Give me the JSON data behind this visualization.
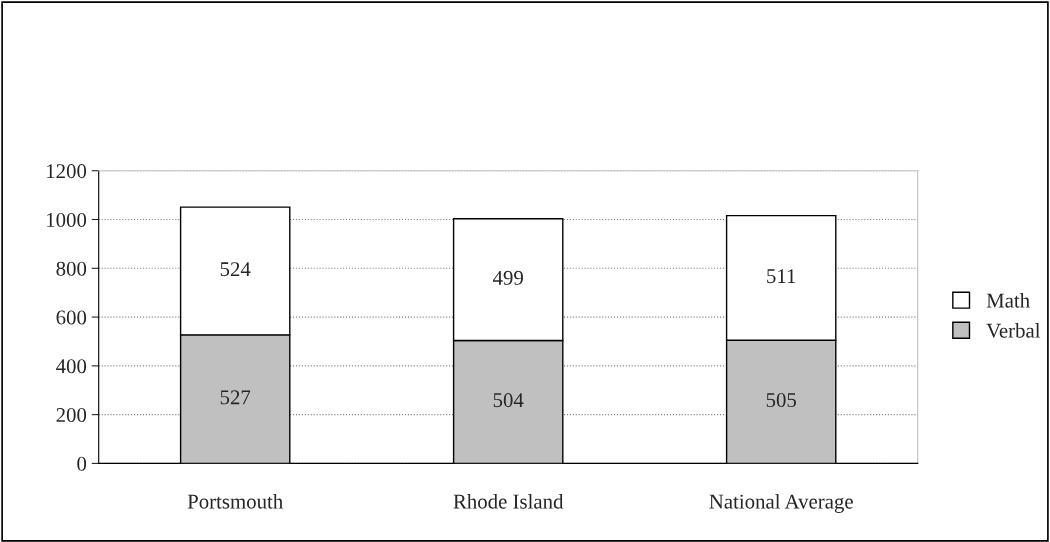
{
  "chart_data": {
    "type": "bar",
    "stacked": true,
    "categories": [
      "Portsmouth",
      "Rhode Island",
      "National Average"
    ],
    "series": [
      {
        "name": "Verbal",
        "color": "#c0c0c0",
        "values": [
          527,
          504,
          505
        ]
      },
      {
        "name": "Math",
        "color": "#ffffff",
        "values": [
          524,
          499,
          511
        ]
      }
    ],
    "ylim": [
      0,
      1200
    ],
    "yticks": [
      0,
      200,
      400,
      600,
      800,
      1000,
      1200
    ],
    "grid": "y",
    "legend": "right",
    "data_labels": true
  }
}
